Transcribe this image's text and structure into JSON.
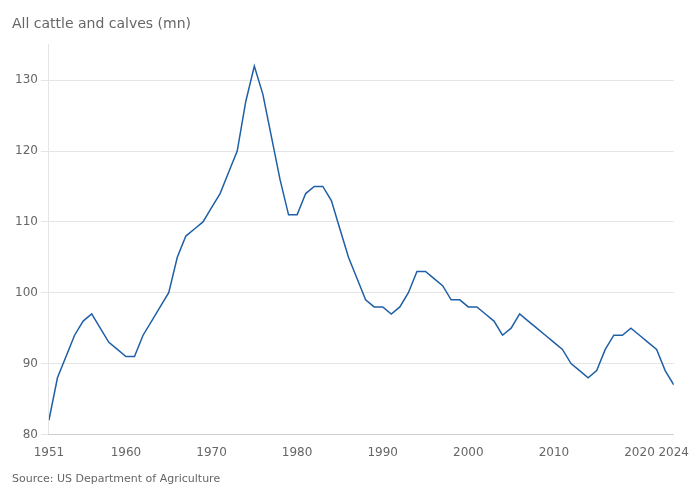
{
  "chart_data": {
    "type": "line",
    "title": "All cattle and calves (mn)",
    "annotation": "Source: US Department of Agriculture",
    "x": [
      1951,
      1952,
      1953,
      1954,
      1955,
      1956,
      1957,
      1958,
      1959,
      1960,
      1961,
      1962,
      1963,
      1964,
      1965,
      1966,
      1967,
      1968,
      1969,
      1970,
      1971,
      1972,
      1973,
      1974,
      1975,
      1976,
      1977,
      1978,
      1979,
      1980,
      1981,
      1982,
      1983,
      1984,
      1985,
      1986,
      1987,
      1988,
      1989,
      1990,
      1991,
      1992,
      1993,
      1994,
      1995,
      1996,
      1997,
      1998,
      1999,
      2000,
      2001,
      2002,
      2003,
      2004,
      2005,
      2006,
      2007,
      2008,
      2009,
      2010,
      2011,
      2012,
      2013,
      2014,
      2015,
      2016,
      2017,
      2018,
      2019,
      2020,
      2021,
      2022,
      2023,
      2024
    ],
    "values": [
      82,
      88,
      91,
      94,
      96,
      97,
      95,
      93,
      92,
      91,
      91,
      94,
      96,
      98,
      100,
      105,
      108,
      109,
      110,
      112,
      114,
      117,
      120,
      127,
      132,
      128,
      122,
      116,
      111,
      111,
      114,
      115,
      115,
      113,
      109,
      105,
      102,
      99,
      98,
      98,
      97,
      98,
      100,
      103,
      103,
      102,
      101,
      99,
      99,
      98,
      98,
      97,
      96,
      94,
      95,
      97,
      96,
      95,
      94,
      93,
      92,
      90,
      89,
      88,
      89,
      92,
      94,
      94,
      95,
      94,
      93,
      92,
      89,
      87
    ],
    "color": "#1f5fa6",
    "xlim": [
      1951,
      2024
    ],
    "xticks": [
      1951,
      1960,
      1970,
      1980,
      1990,
      2000,
      2010,
      2020,
      2024
    ],
    "ylim": [
      80,
      135
    ],
    "yticks": [
      80,
      90,
      100,
      110,
      120,
      130
    ],
    "grid": "y"
  }
}
